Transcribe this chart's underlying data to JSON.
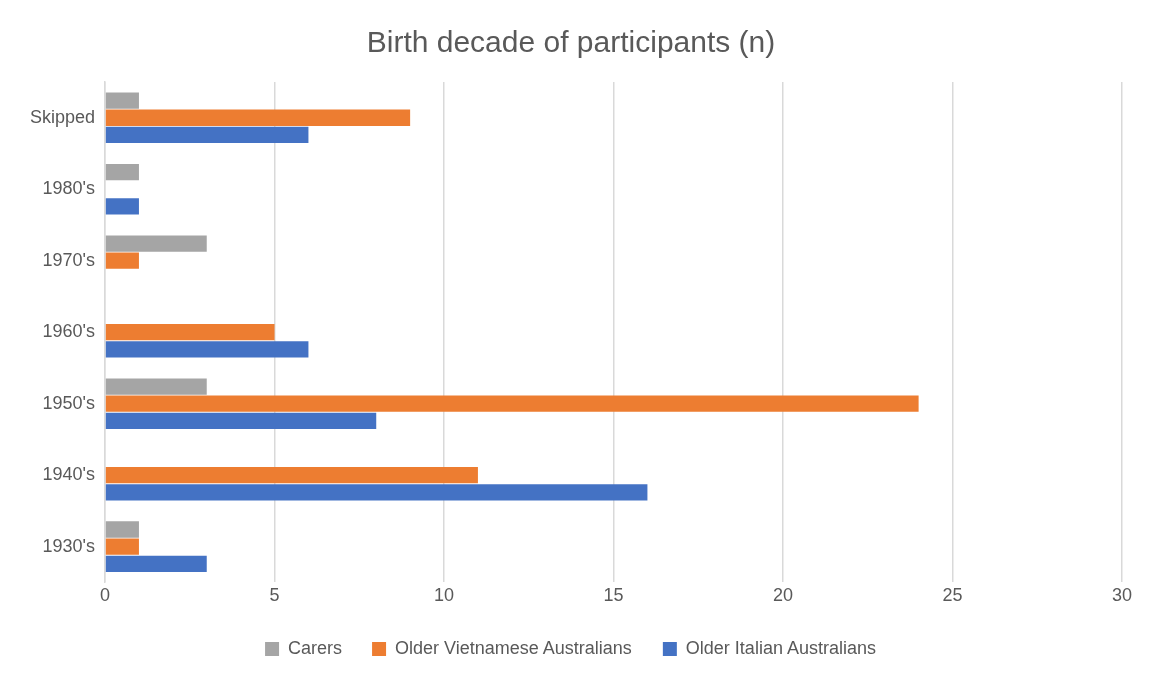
{
  "chart_data": {
    "type": "bar",
    "orientation": "horizontal",
    "title": "Birth decade of participants (n)",
    "categories": [
      "Skipped",
      "1980's",
      "1970's",
      "1960's",
      "1950's",
      "1940's",
      "1930's"
    ],
    "series": [
      {
        "name": "Carers",
        "color": "#a5a5a5",
        "values": [
          1,
          1,
          3,
          null,
          3,
          null,
          1
        ]
      },
      {
        "name": "Older Vietnamese Australians",
        "color": "#ed7d31",
        "values": [
          9,
          null,
          1,
          5,
          24,
          11,
          1
        ]
      },
      {
        "name": "Older Italian Australians",
        "color": "#4472c4",
        "values": [
          6,
          1,
          null,
          6,
          8,
          16,
          3
        ]
      }
    ],
    "xlim": [
      0,
      30
    ],
    "xticks": [
      0,
      5,
      10,
      15,
      20,
      25,
      30
    ],
    "grid": "x",
    "legend": "bottom"
  }
}
